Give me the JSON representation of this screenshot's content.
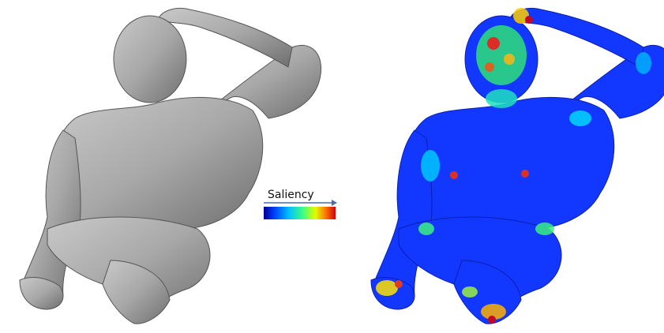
{
  "legend": {
    "label": "Saliency"
  }
}
